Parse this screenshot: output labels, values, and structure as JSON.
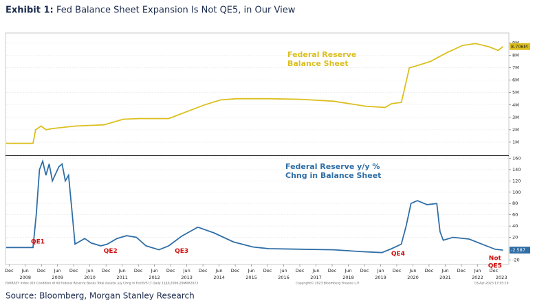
{
  "header": {
    "title_prefix": "Exhibit 1:",
    "title": "Fed Balance Sheet Expansion Is Not QE5, in Our View"
  },
  "source": "Source: Bloomberg, Morgan Stanley Research",
  "footnotes": [
    "FARBAST Index (US Condition of All Federal Reserve Banks Total Assets) y/y Chng in Fed B/S LT  Daily 11JUL2006-29MAR2023",
    "Copyright© 2023 Bloomberg Finance L.P.",
    "03-Apr-2023 17:05:19"
  ],
  "chart_data": [
    {
      "type": "line",
      "color": "#dcbf1e",
      "annotations": [
        {
          "lines": [
            "Federal Reserve",
            "Balance Sheet"
          ]
        }
      ],
      "x": [
        2007.87,
        2008.7,
        2008.78,
        2008.95,
        2009.1,
        2009.3,
        2010.0,
        2010.9,
        2011.5,
        2012.0,
        2012.9,
        2013.5,
        2014.0,
        2014.5,
        2015.0,
        2016.0,
        2017.0,
        2018.0,
        2019.0,
        2019.6,
        2019.8,
        2020.1,
        2020.2,
        2020.35,
        2020.5,
        2021.0,
        2021.5,
        2022.0,
        2022.4,
        2022.8,
        2023.1,
        2023.25
      ],
      "values": [
        0.9,
        0.9,
        2.0,
        2.3,
        2.0,
        2.1,
        2.3,
        2.4,
        2.85,
        2.9,
        2.9,
        3.5,
        4.0,
        4.4,
        4.5,
        4.5,
        4.45,
        4.3,
        3.9,
        3.8,
        4.1,
        4.2,
        5.3,
        7.0,
        7.1,
        7.5,
        8.2,
        8.8,
        8.95,
        8.7,
        8.4,
        8.706
      ],
      "last_value_label": "8.706M",
      "xlim": [
        2007.87,
        2023.43
      ],
      "ylim": [
        0,
        9.8
      ],
      "yticks": [
        {
          "value": 1,
          "label": "1M"
        },
        {
          "value": 2,
          "label": "2M"
        },
        {
          "value": 3,
          "label": "3M"
        },
        {
          "value": 4,
          "label": "4M"
        },
        {
          "value": 5,
          "label": "5M"
        },
        {
          "value": 6,
          "label": "6M"
        },
        {
          "value": 7,
          "label": "7M"
        },
        {
          "value": 8,
          "label": "8M"
        },
        {
          "value": 9,
          "label": "9M"
        }
      ],
      "grid": true
    },
    {
      "type": "line",
      "color": "#2f6ea6",
      "annotations": [
        {
          "lines": [
            "Federal Reserve y/y %",
            "Chng in Balance Sheet"
          ]
        }
      ],
      "labels": [
        {
          "lines": [
            "QE1"
          ],
          "x": 2008.85,
          "y": 12
        },
        {
          "lines": [
            "QE2"
          ],
          "x": 2011.1,
          "y": -4
        },
        {
          "lines": [
            "QE3"
          ],
          "x": 2013.3,
          "y": -4
        },
        {
          "lines": [
            "QE4"
          ],
          "x": 2020.0,
          "y": -9
        },
        {
          "lines": [
            "Not",
            "QE5"
          ],
          "x": 2023.0,
          "y": -17
        }
      ],
      "x": [
        2007.87,
        2008.7,
        2008.8,
        2008.9,
        2009.0,
        2009.1,
        2009.2,
        2009.3,
        2009.5,
        2009.6,
        2009.7,
        2009.8,
        2009.9,
        2010.0,
        2010.3,
        2010.5,
        2010.8,
        2011.0,
        2011.3,
        2011.6,
        2011.9,
        2012.2,
        2012.6,
        2012.9,
        2013.3,
        2013.8,
        2014.3,
        2014.9,
        2015.5,
        2016.0,
        2017.0,
        2018.0,
        2018.8,
        2019.5,
        2019.8,
        2020.1,
        2020.25,
        2020.4,
        2020.6,
        2020.9,
        2021.2,
        2021.3,
        2021.4,
        2021.7,
        2022.2,
        2022.6,
        2023.0,
        2023.25
      ],
      "values": [
        2,
        2,
        60,
        140,
        155,
        130,
        150,
        120,
        145,
        150,
        120,
        130,
        70,
        8,
        18,
        10,
        5,
        8,
        18,
        23,
        20,
        5,
        -2,
        5,
        22,
        38,
        28,
        12,
        3,
        0,
        -1,
        -2,
        -5,
        -7,
        0,
        8,
        40,
        80,
        85,
        78,
        80,
        30,
        15,
        20,
        17,
        8,
        -1,
        -2.587
      ],
      "last_value_label": "-2.587",
      "xlim": [
        2007.87,
        2023.43
      ],
      "ylim": [
        -28,
        163
      ],
      "yticks": [
        -20,
        20,
        40,
        60,
        80,
        100,
        120,
        140,
        160
      ],
      "xticks": [
        {
          "value": 2007.96,
          "label": "Dec"
        },
        {
          "value": 2008.46,
          "label": "Jun"
        },
        {
          "value": 2008.96,
          "label": "Dec"
        },
        {
          "value": 2009.46,
          "label": "Jun"
        },
        {
          "value": 2009.96,
          "label": "Dec"
        },
        {
          "value": 2010.46,
          "label": "Jun"
        },
        {
          "value": 2010.96,
          "label": "Dec"
        },
        {
          "value": 2011.46,
          "label": "Jun"
        },
        {
          "value": 2011.96,
          "label": "Dec"
        },
        {
          "value": 2012.46,
          "label": "Jun"
        },
        {
          "value": 2012.96,
          "label": "Dec"
        },
        {
          "value": 2013.46,
          "label": "Jun"
        },
        {
          "value": 2013.96,
          "label": "Dec"
        },
        {
          "value": 2014.46,
          "label": "Jun"
        },
        {
          "value": 2014.96,
          "label": "Dec"
        },
        {
          "value": 2015.46,
          "label": "Jun"
        },
        {
          "value": 2015.96,
          "label": "Dec"
        },
        {
          "value": 2016.46,
          "label": "Jun"
        },
        {
          "value": 2016.96,
          "label": "Dec"
        },
        {
          "value": 2017.46,
          "label": "Jun"
        },
        {
          "value": 2017.96,
          "label": "Dec"
        },
        {
          "value": 2018.46,
          "label": "Jun"
        },
        {
          "value": 2018.96,
          "label": "Dec"
        },
        {
          "value": 2019.46,
          "label": "Jun"
        },
        {
          "value": 2019.96,
          "label": "Dec"
        },
        {
          "value": 2020.46,
          "label": "Jun"
        },
        {
          "value": 2020.96,
          "label": "Dec"
        },
        {
          "value": 2021.46,
          "label": "Jun"
        },
        {
          "value": 2021.96,
          "label": "Dec"
        },
        {
          "value": 2022.46,
          "label": "Jun"
        },
        {
          "value": 2022.96,
          "label": "Dec"
        }
      ],
      "year_ticks": [
        {
          "value": 2008.46,
          "label": "2008"
        },
        {
          "value": 2009.46,
          "label": "2009"
        },
        {
          "value": 2010.46,
          "label": "2010"
        },
        {
          "value": 2011.46,
          "label": "2011"
        },
        {
          "value": 2012.46,
          "label": "2012"
        },
        {
          "value": 2013.46,
          "label": "2013"
        },
        {
          "value": 2014.46,
          "label": "2014"
        },
        {
          "value": 2015.46,
          "label": "2015"
        },
        {
          "value": 2016.46,
          "label": "2016"
        },
        {
          "value": 2017.46,
          "label": "2017"
        },
        {
          "value": 2018.46,
          "label": "2018"
        },
        {
          "value": 2019.46,
          "label": "2019"
        },
        {
          "value": 2020.46,
          "label": "2020"
        },
        {
          "value": 2021.46,
          "label": "2021"
        },
        {
          "value": 2022.46,
          "label": "2022"
        },
        {
          "value": 2023.2,
          "label": "2023"
        }
      ],
      "grid": true
    }
  ]
}
